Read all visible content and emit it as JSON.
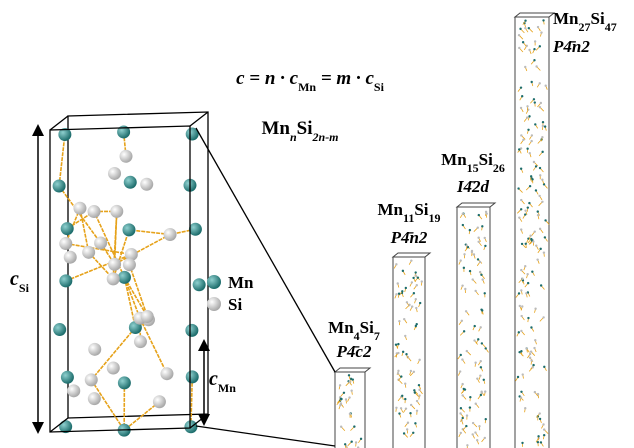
{
  "equation": [
    {
      "text": "c = n · c"
    },
    {
      "sub": "Mn"
    },
    {
      "text": " = m · c"
    },
    {
      "sub": "Si"
    }
  ],
  "general_formula": [
    {
      "text": "Mn"
    },
    {
      "sub": "n"
    },
    {
      "text": "Si"
    },
    {
      "sub": "2n-m"
    }
  ],
  "legend": [
    {
      "label": "Mn"
    },
    {
      "label": "Si"
    }
  ],
  "axis_labels": {
    "c_si": [
      {
        "text": "c"
      },
      {
        "sub": "Si"
      }
    ],
    "c_mn": [
      {
        "text": "c"
      },
      {
        "sub": "Mn"
      }
    ]
  },
  "phases": [
    {
      "formula": [
        {
          "text": "Mn"
        },
        {
          "sub": "4"
        },
        {
          "text": "Si"
        },
        {
          "sub": "7"
        }
      ],
      "space_group": "P4̄c2"
    },
    {
      "formula": [
        {
          "text": "Mn"
        },
        {
          "sub": "11"
        },
        {
          "text": "Si"
        },
        {
          "sub": "19"
        }
      ],
      "space_group": "P4̄n2"
    },
    {
      "formula": [
        {
          "text": "Mn"
        },
        {
          "sub": "15"
        },
        {
          "text": "Si"
        },
        {
          "sub": "26"
        }
      ],
      "space_group": "I4̄2d"
    },
    {
      "formula": [
        {
          "text": "Mn"
        },
        {
          "sub": "27"
        },
        {
          "text": "Si"
        },
        {
          "sub": "47"
        }
      ],
      "space_group": "P4̄n2"
    }
  ]
}
